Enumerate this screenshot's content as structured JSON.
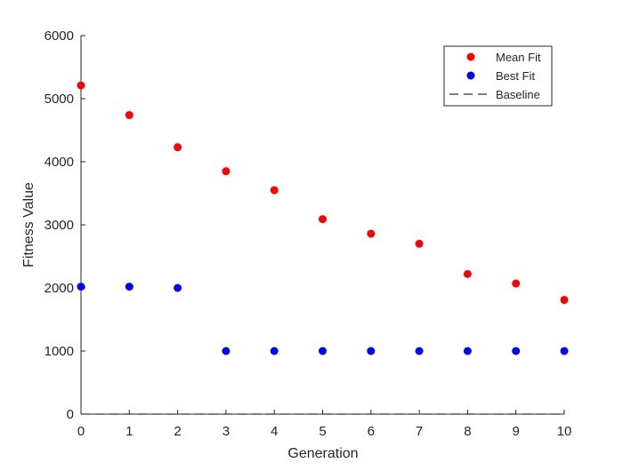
{
  "chart_data": {
    "type": "scatter",
    "title": "",
    "xlabel": "Generation",
    "ylabel": "Fitness Value",
    "xlim": [
      0,
      10
    ],
    "ylim": [
      0,
      6000
    ],
    "xticks": [
      0,
      1,
      2,
      3,
      4,
      5,
      6,
      7,
      8,
      9,
      10
    ],
    "yticks": [
      0,
      1000,
      2000,
      3000,
      4000,
      5000,
      6000
    ],
    "grid": false,
    "legend_position": "top-right",
    "x": [
      0,
      1,
      2,
      3,
      4,
      5,
      6,
      7,
      8,
      9,
      10
    ],
    "series": [
      {
        "name": "Mean Fit",
        "color": "#ff0000",
        "marker": "circle",
        "values": [
          5210,
          4740,
          4230,
          3850,
          3550,
          3090,
          2860,
          2700,
          2220,
          2070,
          1810
        ]
      },
      {
        "name": "Best Fit",
        "color": "#0000ff",
        "marker": "circle",
        "values": [
          2020,
          2020,
          2000,
          1000,
          1000,
          1000,
          1000,
          1000,
          1000,
          1000,
          1000
        ]
      },
      {
        "name": "Baseline",
        "color": "#000000",
        "marker": "dashed-line",
        "values": [
          0,
          0,
          0,
          0,
          0,
          0,
          0,
          0,
          0,
          0,
          0
        ]
      }
    ]
  }
}
